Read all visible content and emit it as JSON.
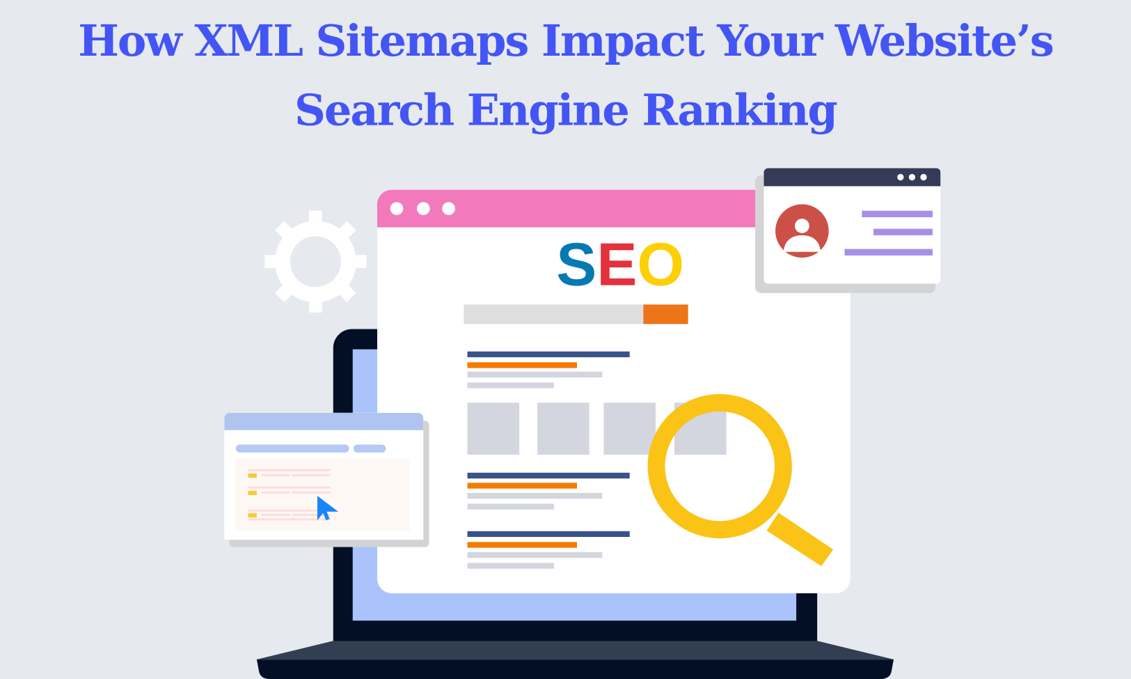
{
  "title": {
    "line1": "How XML Sitemaps Impact Your Website’s",
    "line2": "Search Engine Ranking"
  },
  "seo": {
    "s": "S",
    "e": "E",
    "o": "O"
  },
  "seo_progress_percent": 80,
  "colors": {
    "title": "#4355f4",
    "background": "#e6e9ee",
    "window_header": "#f279bb",
    "seo_s": "#0779b2",
    "seo_e": "#e3313d",
    "seo_o": "#fdd004",
    "magnifier": "#fac316",
    "laptop_screen": "#aac4fb",
    "avatar": "#cb5148"
  },
  "icons": [
    "gear-icon",
    "magnifier-icon",
    "user-avatar-icon",
    "cursor-icon",
    "laptop-icon"
  ]
}
